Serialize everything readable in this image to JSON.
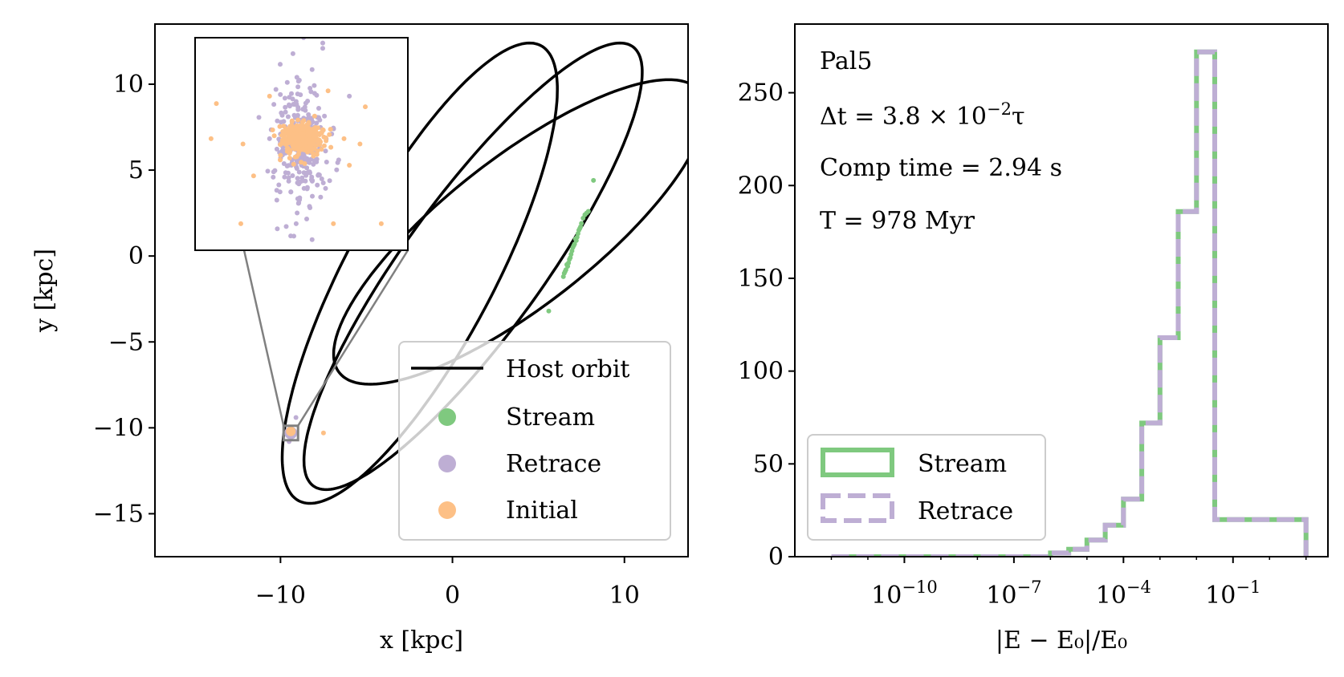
{
  "colors": {
    "stream": "#7fc97f",
    "retrace": "#beaed4",
    "initial": "#fdc086",
    "host": "#000000",
    "zoom_lines": "#808080"
  },
  "chart_data": [
    {
      "type": "scatter",
      "title": "",
      "xlabel": "x [kpc]",
      "ylabel": "y [kpc]",
      "xlim": [
        -17.3,
        13.7
      ],
      "ylim": [
        -17.5,
        13.5
      ],
      "xticks": [
        -10,
        0,
        10
      ],
      "xtick_labels": [
        "−10",
        "0",
        "10"
      ],
      "yticks": [
        -15,
        -10,
        -5,
        0,
        5,
        10
      ],
      "ytick_labels": [
        "−15",
        "−10",
        "−5",
        "0",
        "5",
        "10"
      ],
      "host_orbit": {
        "name": "Host orbit",
        "loops": [
          {
            "cx": -1.9,
            "cy": -1.0,
            "a": 15.0,
            "b": 4.3,
            "angle_deg": 62
          },
          {
            "cx": 1.2,
            "cy": -0.6,
            "a": 15.8,
            "b": 4.0,
            "angle_deg": 54
          },
          {
            "cx": 3.9,
            "cy": 1.4,
            "a": 13.3,
            "b": 4.3,
            "angle_deg": 38
          }
        ]
      },
      "stream": {
        "name": "Stream",
        "points": [
          [
            8.2,
            4.4
          ],
          [
            7.9,
            2.6
          ],
          [
            7.7,
            2.4
          ],
          [
            7.5,
            1.9
          ],
          [
            7.4,
            1.6
          ],
          [
            7.3,
            1.3
          ],
          [
            7.25,
            1.1
          ],
          [
            7.2,
            0.9
          ],
          [
            7.1,
            0.7
          ],
          [
            7.0,
            0.5
          ],
          [
            6.95,
            0.3
          ],
          [
            6.9,
            0.1
          ],
          [
            6.8,
            -0.2
          ],
          [
            6.75,
            -0.4
          ],
          [
            6.7,
            -0.6
          ],
          [
            6.6,
            -0.8
          ],
          [
            6.5,
            -1.0
          ],
          [
            6.45,
            -1.2
          ],
          [
            7.6,
            2.2
          ],
          [
            7.35,
            1.5
          ],
          [
            7.15,
            1.0
          ],
          [
            7.05,
            0.6
          ],
          [
            6.85,
            -0.1
          ],
          [
            6.65,
            -0.5
          ],
          [
            6.55,
            -0.9
          ],
          [
            5.6,
            -3.2
          ],
          [
            7.8,
            2.5
          ],
          [
            7.45,
            1.7
          ]
        ]
      },
      "retrace": {
        "name": "Retrace",
        "cluster": [
          -9.4,
          -10.3
        ],
        "extra_points": [
          [
            -9.5,
            -10.8
          ],
          [
            -9.1,
            -9.4
          ]
        ]
      },
      "initial": {
        "name": "Initial",
        "cluster": [
          -9.4,
          -10.3
        ],
        "extra_points": [
          [
            -7.5,
            -10.3
          ]
        ]
      },
      "inset": {
        "xlim": [
          -1,
          1
        ],
        "ylim": [
          -1,
          1
        ],
        "retrace_points": [
          [
            0.05,
            0.1
          ],
          [
            -0.05,
            0.4
          ],
          [
            0.1,
            0.7
          ],
          [
            -0.08,
            0.85
          ],
          [
            0.02,
            1.0
          ],
          [
            0.12,
            0.55
          ],
          [
            -0.15,
            0.3
          ],
          [
            0.2,
            0.9
          ],
          [
            -0.2,
            0.75
          ],
          [
            0.15,
            0.25
          ],
          [
            0.0,
            -0.2
          ],
          [
            -0.1,
            -0.45
          ],
          [
            0.08,
            -0.6
          ],
          [
            -0.05,
            -0.75
          ],
          [
            0.1,
            -0.9
          ],
          [
            -0.12,
            -0.35
          ],
          [
            0.18,
            -0.5
          ],
          [
            -0.25,
            -0.25
          ],
          [
            0.3,
            0.15
          ],
          [
            -0.3,
            0.05
          ],
          [
            0.35,
            -0.15
          ],
          [
            -0.4,
            0.25
          ],
          [
            0.45,
            0.45
          ],
          [
            0.2,
            0.95
          ],
          [
            -0.02,
            0.6
          ]
        ],
        "initial_points": [
          [
            -0.8,
            0.38
          ],
          [
            -0.55,
            0.0
          ],
          [
            -0.2,
            -0.15
          ],
          [
            0.4,
            0.05
          ],
          [
            0.55,
            0.0
          ],
          [
            0.75,
            -0.75
          ],
          [
            -0.57,
            -0.75
          ],
          [
            -0.85,
            0.05
          ],
          [
            0.3,
            -0.75
          ],
          [
            0.6,
            0.35
          ],
          [
            -0.45,
            -0.3
          ],
          [
            0.25,
            0.5
          ],
          [
            -0.3,
            0.45
          ],
          [
            0.45,
            -0.2
          ]
        ]
      },
      "legend": {
        "position": "lower-right",
        "entries": [
          "Host orbit",
          "Stream",
          "Retrace",
          "Initial"
        ]
      }
    },
    {
      "type": "histogram",
      "xlabel": "|E − E₀|/E₀",
      "ylabel": "",
      "xscale": "log",
      "xlim_log10": [
        -13.0,
        1.6
      ],
      "ylim": [
        0,
        287
      ],
      "yticks": [
        0,
        50,
        100,
        150,
        200,
        250
      ],
      "xticks_log10": [
        -10,
        -7,
        -4,
        -1
      ],
      "bin_edges_log10": [
        -12.0,
        -6.0,
        -5.5,
        -5.0,
        -4.5,
        -4.0,
        -3.5,
        -3.0,
        -2.5,
        -2.0,
        -1.5,
        1.0
      ],
      "series": [
        {
          "name": "Stream",
          "counts": [
            0,
            2,
            4,
            9,
            17,
            31,
            72,
            118,
            186,
            272,
            20
          ],
          "style": "solid"
        },
        {
          "name": "Retrace",
          "counts": [
            0,
            2,
            4,
            9,
            17,
            31,
            72,
            118,
            186,
            272,
            20
          ],
          "style": "dashed"
        }
      ],
      "annotations": {
        "name": "Pal5",
        "dt_prefix": "Δt = 3.8 × 10",
        "dt_exp": "−2",
        "dt_suffix": "τ",
        "comp_time": "Comp time = 2.94 s",
        "T": "T = 978 Myr"
      },
      "legend": {
        "position": "lower-left",
        "entries": [
          "Stream",
          "Retrace"
        ]
      }
    }
  ]
}
